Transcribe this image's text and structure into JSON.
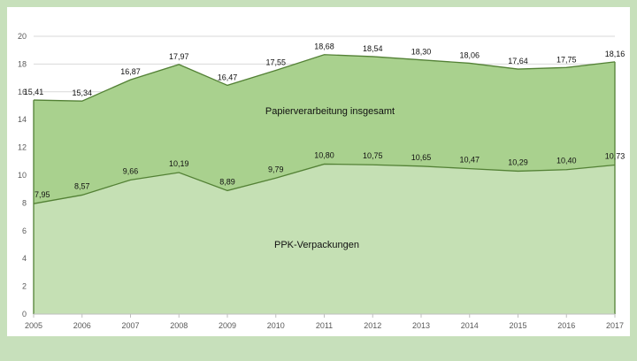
{
  "chart_data": {
    "type": "area",
    "x": [
      "2005",
      "2006",
      "2007",
      "2008",
      "2009",
      "2010",
      "2011",
      "2012",
      "2013",
      "2014",
      "2015",
      "2016",
      "2017"
    ],
    "series": [
      {
        "name": "PPK-Verpackungen",
        "values": [
          7.95,
          8.57,
          9.66,
          10.19,
          8.89,
          9.79,
          10.8,
          10.75,
          10.65,
          10.47,
          10.29,
          10.4,
          10.73
        ],
        "labels": [
          "7,95",
          "8,57",
          "9,66",
          "10,19",
          "8,89",
          "9,79",
          "10,80",
          "10,75",
          "10,65",
          "10,47",
          "10,29",
          "10,40",
          "10,73"
        ],
        "color": "#c5e0b4"
      },
      {
        "name": "Papierverarbeitung insgesamt",
        "values": [
          15.41,
          15.34,
          16.87,
          17.97,
          16.47,
          17.55,
          18.68,
          18.54,
          18.3,
          18.06,
          17.64,
          17.75,
          18.16
        ],
        "labels": [
          "15,41",
          "15,34",
          "16,87",
          "17,97",
          "16,47",
          "17,55",
          "18,68",
          "18,54",
          "18,30",
          "18,06",
          "17,64",
          "17,75",
          "18,16"
        ],
        "color": "#a9d18e"
      }
    ],
    "ylim": [
      0,
      20
    ],
    "yticks": [
      "0",
      "2",
      "4",
      "6",
      "8",
      "10",
      "12",
      "14",
      "16",
      "18",
      "20"
    ],
    "grid": true,
    "line_color": "#538135"
  }
}
